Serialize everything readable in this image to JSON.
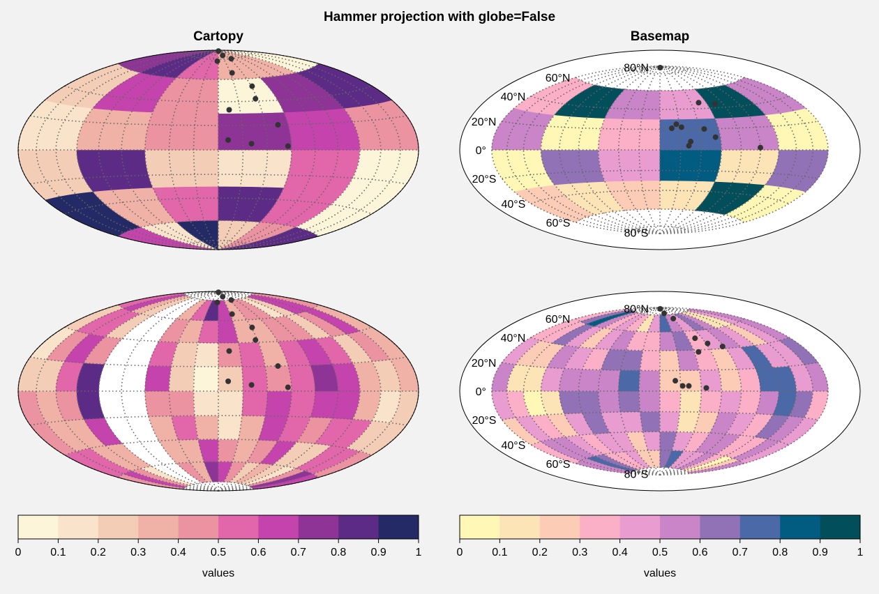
{
  "suptitle": "Hammer projection with globe=False",
  "panels": [
    {
      "title": "Cartopy"
    },
    {
      "title": "Basemap"
    }
  ],
  "lat_labels": [
    "80°N",
    "60°N",
    "40°N",
    "20°N",
    "0°",
    "20°S",
    "40°S",
    "60°S",
    "80°S"
  ],
  "colorbars": [
    {
      "label": "values",
      "cmap": "magma-like (light cream to navy)",
      "ticks": [
        "0",
        "0.1",
        "0.2",
        "0.3",
        "0.4",
        "0.5",
        "0.6",
        "0.7",
        "0.8",
        "0.9",
        "1"
      ],
      "colors": [
        "#fcf5d9",
        "#f9e4cb",
        "#f4cdb6",
        "#f0b2a6",
        "#eb93a1",
        "#e267aa",
        "#c443ac",
        "#8d3496",
        "#5c2b85",
        "#232a66"
      ]
    },
    {
      "label": "values",
      "cmap": "yellow to pink to purple to teal",
      "ticks": [
        "0",
        "0.1",
        "0.2",
        "0.3",
        "0.4",
        "0.5",
        "0.6",
        "0.7",
        "0.8",
        "0.9",
        "1"
      ],
      "colors": [
        "#fff7b6",
        "#fde4b7",
        "#fdccb6",
        "#fbb0c7",
        "#e99ccf",
        "#c985c7",
        "#9272b7",
        "#4c69a7",
        "#025c82",
        "#034e5b"
      ]
    }
  ],
  "chart_data": [
    {
      "type": "heatmap",
      "panel": "top-left",
      "projection": "hammer",
      "library": "Cartopy",
      "plot": "pcolormesh",
      "grid": true,
      "vlim": [
        0,
        1
      ],
      "points": [
        [
          3,
          89
        ],
        [
          25,
          84
        ],
        [
          47,
          80
        ],
        [
          -3,
          78
        ],
        [
          23,
          66
        ],
        [
          41,
          53
        ],
        [
          38,
          42
        ],
        [
          10,
          33
        ],
        [
          51,
          20
        ],
        [
          8,
          8
        ],
        [
          27,
          5
        ],
        [
          57,
          3
        ]
      ]
    },
    {
      "type": "heatmap",
      "panel": "top-right",
      "projection": "hammer",
      "library": "Basemap",
      "plot": "pcolormesh",
      "grid": true,
      "vlim": [
        0,
        1
      ],
      "points": [
        [
          5,
          88
        ],
        [
          50,
          46
        ],
        [
          70,
          44
        ],
        [
          17,
          25
        ],
        [
          22,
          22
        ],
        [
          12,
          21
        ],
        [
          45,
          20
        ],
        [
          55,
          12
        ],
        [
          30,
          8
        ],
        [
          28,
          4
        ],
        [
          100,
          2
        ]
      ]
    },
    {
      "type": "heatmap",
      "panel": "bottom-left",
      "projection": "hammer",
      "library": "Cartopy",
      "plot": "contourf",
      "grid": true,
      "vlim": [
        0,
        1
      ],
      "points": [
        [
          3,
          89
        ],
        [
          25,
          84
        ],
        [
          47,
          80
        ],
        [
          -3,
          78
        ],
        [
          23,
          66
        ],
        [
          41,
          53
        ],
        [
          38,
          42
        ],
        [
          10,
          33
        ],
        [
          51,
          20
        ],
        [
          8,
          8
        ],
        [
          27,
          5
        ],
        [
          57,
          3
        ]
      ]
    },
    {
      "type": "heatmap",
      "panel": "bottom-right",
      "projection": "hammer",
      "library": "Basemap",
      "plot": "contourf",
      "grid": true,
      "vlim": [
        0,
        1
      ],
      "points": [
        [
          5,
          88
        ],
        [
          22,
          82
        ],
        [
          40,
          75
        ],
        [
          50,
          52
        ],
        [
          62,
          46
        ],
        [
          78,
          42
        ],
        [
          45,
          38
        ],
        [
          15,
          10
        ],
        [
          22,
          5
        ],
        [
          28,
          5
        ],
        [
          45,
          3
        ]
      ]
    }
  ]
}
